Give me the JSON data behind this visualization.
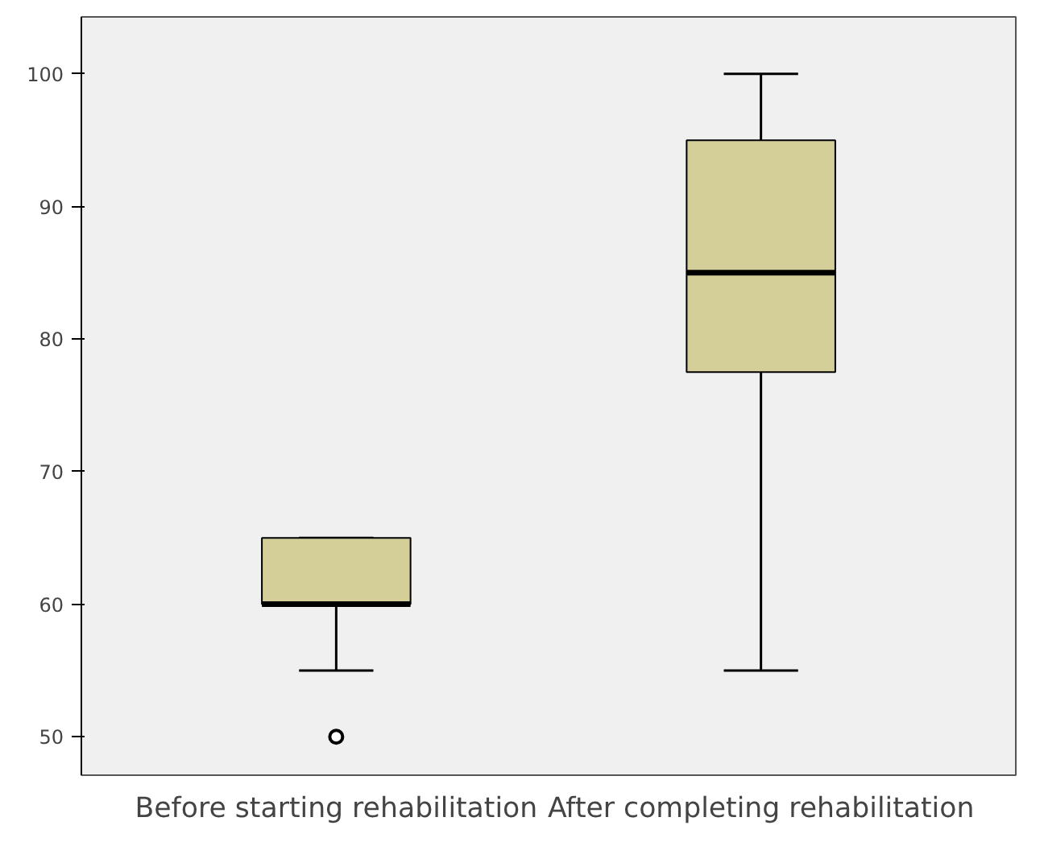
{
  "chart_data": {
    "type": "box",
    "categories": [
      "Before starting rehabilitation",
      "After completing rehabilitation"
    ],
    "boxes": [
      {
        "low": 55,
        "q1": 60,
        "median": 60,
        "q3": 65,
        "high": 65,
        "outliers": [
          50
        ]
      },
      {
        "low": 55,
        "q1": 77.5,
        "median": 85,
        "q3": 95,
        "high": 100
      }
    ],
    "color": "#d4cf98",
    "ylim": [
      47.1,
      104.3
    ],
    "yticks": [
      50,
      60,
      70,
      80,
      90,
      100
    ],
    "grid": false
  }
}
